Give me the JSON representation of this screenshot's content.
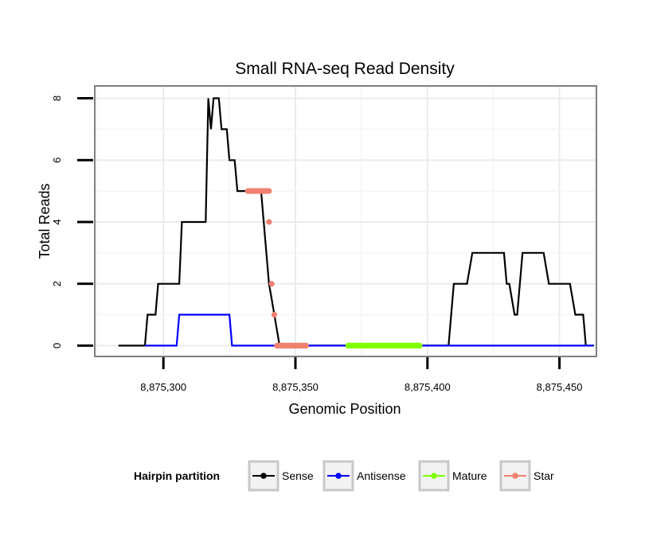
{
  "chart_data": {
    "type": "line",
    "title": "Small RNA-seq Read Density",
    "xlabel": "Genomic Position",
    "ylabel": "Total Reads",
    "xlim": [
      8875274,
      8875464
    ],
    "ylim": [
      -0.35,
      8.4
    ],
    "x_ticks": [
      8875300,
      8875350,
      8875400,
      8875450
    ],
    "x_tick_labels": [
      "8,875,300",
      "8,875,350",
      "8,875,400",
      "8,875,450"
    ],
    "y_ticks": [
      0,
      2,
      4,
      6,
      8
    ],
    "y_tick_labels": [
      "0",
      "2",
      "4",
      "6",
      "8"
    ],
    "grid": true,
    "legend": {
      "title": "Hairpin partition",
      "position": "bottom",
      "entries": [
        {
          "name": "Sense",
          "color": "#000000"
        },
        {
          "name": "Antisense",
          "color": "#0000ff"
        },
        {
          "name": "Mature",
          "color": "#7fff00"
        },
        {
          "name": "Star",
          "color": "#f08070"
        }
      ]
    },
    "series": [
      {
        "name": "Sense",
        "color": "#000000",
        "style": "line",
        "x": [
          8875283,
          8875293,
          8875294,
          8875297,
          8875298,
          8875306,
          8875307,
          8875314,
          8875316,
          8875317,
          8875318,
          8875319,
          8875321,
          8875322,
          8875324,
          8875325,
          8875326,
          8875327,
          8875328,
          8875331,
          8875332,
          8875334,
          8875336,
          8875337,
          8875338,
          8875339,
          8875340,
          8875341,
          8875342,
          8875343,
          8875344,
          8875345,
          8875346,
          8875355,
          8875408,
          8875410,
          8875415,
          8875417,
          8875429,
          8875430,
          8875431,
          8875433,
          8875434,
          8875436,
          8875444,
          8875446,
          8875454,
          8875456,
          8875459,
          8875460,
          8875463
        ],
        "y": [
          0,
          0,
          1,
          1,
          2,
          2,
          4,
          4,
          4,
          8,
          7,
          8,
          8,
          7,
          7,
          6,
          6,
          6,
          5,
          5,
          5,
          5,
          5,
          5,
          4,
          3,
          2,
          1.5,
          1,
          0.5,
          0,
          0,
          0,
          0,
          0,
          2,
          2,
          3,
          3,
          2,
          2,
          1,
          1,
          3,
          3,
          2,
          2,
          1,
          1,
          0,
          0
        ]
      },
      {
        "name": "Antisense",
        "color": "#0000ff",
        "style": "line",
        "x": [
          8875293,
          8875305,
          8875306,
          8875325,
          8875326,
          8875360,
          8875408,
          8875463
        ],
        "y": [
          0,
          0,
          1,
          1,
          0,
          0,
          0,
          0
        ]
      },
      {
        "name": "Mature",
        "color": "#7fff00",
        "style": "points",
        "x_range": [
          8875370,
          8875397
        ],
        "y": 0
      },
      {
        "name": "Star",
        "color": "#f08070",
        "style": "points",
        "segments": [
          {
            "x_range": [
              8875332,
              8875340
            ],
            "y": 5
          },
          {
            "x_range": [
              8875343,
              8875354
            ],
            "y": 0
          }
        ],
        "points": [
          {
            "x": 8875340,
            "y": 4
          },
          {
            "x": 8875341,
            "y": 2
          },
          {
            "x": 8875342,
            "y": 1
          }
        ]
      }
    ]
  }
}
